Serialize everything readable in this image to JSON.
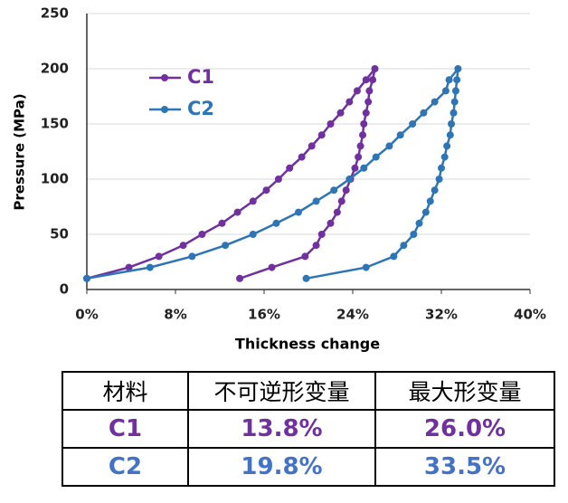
{
  "chart_data": {
    "type": "line",
    "xlabel": "Thickness change",
    "ylabel": "Pressure (MPa)",
    "xlim": [
      0,
      40
    ],
    "xticks": [
      {
        "value": 0,
        "label": "0%"
      },
      {
        "value": 8,
        "label": "8%"
      },
      {
        "value": 16,
        "label": "16%"
      },
      {
        "value": 24,
        "label": "24%"
      },
      {
        "value": 32,
        "label": "32%"
      },
      {
        "value": 40,
        "label": "40%"
      }
    ],
    "ylim": [
      0,
      250
    ],
    "yticks": [
      0,
      50,
      100,
      150,
      200,
      250
    ],
    "grid": true,
    "legend": "upper-left",
    "series": [
      {
        "name": "C1",
        "color": "#7030a0",
        "x": [
          0,
          3.8,
          6.5,
          8.7,
          10.4,
          12.2,
          13.6,
          15,
          16.2,
          17.3,
          18.3,
          19.4,
          20.3,
          21.2,
          22,
          22.9,
          23.7,
          24.4,
          25.2,
          26,
          25.8,
          25.5,
          25.4,
          25.2,
          25,
          24.9,
          24.7,
          24.5,
          24.2,
          23.8,
          23.4,
          23,
          22.6,
          22,
          21.2,
          20.7,
          19.7,
          16.7,
          13.8
        ],
        "values": [
          10,
          20,
          30,
          40,
          50,
          60,
          70,
          80,
          90,
          100,
          110,
          120,
          130,
          140,
          150,
          160,
          170,
          180,
          190,
          200,
          190,
          180,
          170,
          160,
          150,
          140,
          130,
          120,
          110,
          100,
          90,
          80,
          70,
          60,
          50,
          40,
          30,
          20,
          10
        ]
      },
      {
        "name": "C2",
        "color": "#2e75b6",
        "x": [
          0,
          5.7,
          9.5,
          12.5,
          15,
          17.1,
          19.1,
          20.7,
          22.3,
          23.7,
          25,
          26.1,
          27.3,
          28.3,
          29.4,
          30.4,
          31.4,
          32.4,
          32.7,
          33.5,
          33.4,
          33.3,
          33.2,
          33.1,
          32.9,
          32.8,
          32.5,
          32.3,
          32,
          31.8,
          31.4,
          31,
          30.6,
          30,
          29.5,
          28.6,
          27.7,
          25.2,
          19.8
        ],
        "values": [
          10,
          20,
          30,
          40,
          50,
          60,
          70,
          80,
          90,
          100,
          110,
          120,
          130,
          140,
          150,
          160,
          170,
          180,
          190,
          200,
          190,
          180,
          170,
          160,
          150,
          140,
          130,
          120,
          110,
          100,
          90,
          80,
          70,
          60,
          50,
          40,
          30,
          20,
          10
        ]
      }
    ]
  },
  "table": {
    "header": [
      "材料",
      "不可逆形变量",
      "最大形变量"
    ],
    "rows": [
      [
        "C1",
        "13.8%",
        "26.0%"
      ],
      [
        "C2",
        "19.8%",
        "33.5%"
      ]
    ]
  }
}
